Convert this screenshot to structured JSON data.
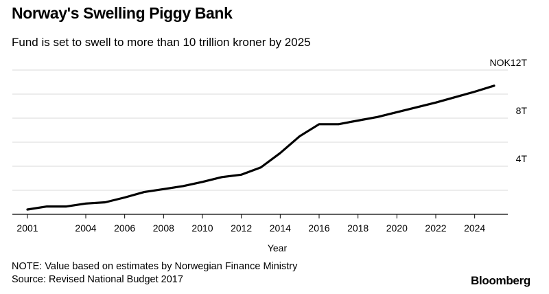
{
  "header": {
    "title": "Norway's Swelling Piggy Bank",
    "subtitle": "Fund is set to swell to more than 10 trillion kroner by 2025"
  },
  "footer": {
    "note": "NOTE: Value based on estimates by Norwegian Finance Ministry",
    "source": "Source: Revised National Budget 2017",
    "brand": "Bloomberg"
  },
  "colors": {
    "line": "#000000",
    "grid": "#d9d9d9",
    "axis": "#000000"
  },
  "chart_data": {
    "type": "line",
    "title": "Norway's Swelling Piggy Bank",
    "subtitle": "Fund is set to swell to more than 10 trillion kroner by 2025",
    "xlabel": "Year",
    "ylabel": "",
    "xlim": [
      2001,
      2025
    ],
    "ylim": [
      0,
      12
    ],
    "grid": true,
    "x_ticks": [
      {
        "value": 2001,
        "label": "2001"
      },
      {
        "value": 2004,
        "label": "2004"
      },
      {
        "value": 2006,
        "label": "2006"
      },
      {
        "value": 2008,
        "label": "2008"
      },
      {
        "value": 2010,
        "label": "2010"
      },
      {
        "value": 2012,
        "label": "2012"
      },
      {
        "value": 2014,
        "label": "2014"
      },
      {
        "value": 2016,
        "label": "2016"
      },
      {
        "value": 2018,
        "label": "2018"
      },
      {
        "value": 2020,
        "label": "2020"
      },
      {
        "value": 2022,
        "label": "2022"
      },
      {
        "value": 2024,
        "label": "2024"
      }
    ],
    "y_gridlines": [
      2,
      4,
      6,
      8,
      10,
      12
    ],
    "y_ticks": [
      {
        "value": 4,
        "label": "4T"
      },
      {
        "value": 8,
        "label": "8T"
      },
      {
        "value": 12,
        "label": "NOK12T"
      }
    ],
    "x": [
      2001,
      2002,
      2003,
      2004,
      2005,
      2006,
      2007,
      2008,
      2009,
      2010,
      2011,
      2012,
      2013,
      2014,
      2015,
      2016,
      2017,
      2018,
      2019,
      2020,
      2021,
      2022,
      2023,
      2024,
      2025
    ],
    "series": [
      {
        "values": [
          0.4,
          0.65,
          0.65,
          0.9,
          1.0,
          1.4,
          1.85,
          2.1,
          2.35,
          2.7,
          3.1,
          3.3,
          3.9,
          5.1,
          6.5,
          7.5,
          7.5,
          7.8,
          8.1,
          8.5,
          8.9,
          9.3,
          9.75,
          10.2,
          10.7
        ]
      }
    ]
  }
}
